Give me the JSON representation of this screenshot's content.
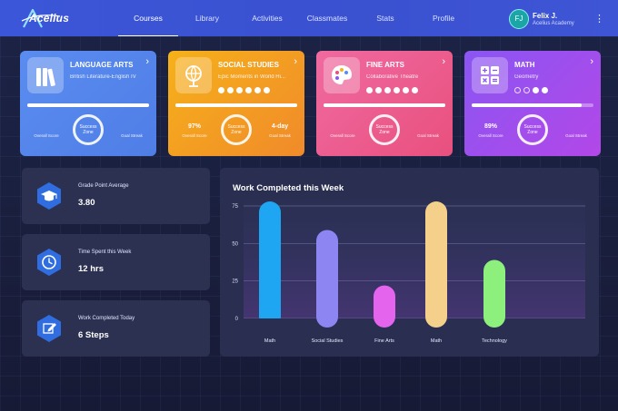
{
  "app": {
    "logo_text": "Acelius"
  },
  "nav": {
    "items": [
      {
        "label": "Courses",
        "active": true
      },
      {
        "label": "Library",
        "active": false
      },
      {
        "label": "Activities",
        "active": false
      },
      {
        "label": "Classmates",
        "active": false
      },
      {
        "label": "Stats",
        "active": false
      },
      {
        "label": "Profile",
        "active": false
      }
    ]
  },
  "user": {
    "initials": "FJ",
    "name": "Felix J.",
    "school": "Acelius Academy"
  },
  "courses": [
    {
      "title": "LANGUAGE ARTS",
      "subtitle": "British Literature-English IV",
      "icon": "books-icon",
      "progress": 1.0,
      "score": "",
      "score_label": "Overall Score",
      "ring_label": "Success Zone",
      "streak": "",
      "streak_label": "Goal Streak",
      "color_from": "#5a8cf0",
      "color_to": "#4f7ee6"
    },
    {
      "title": "SOCIAL STUDIES",
      "subtitle": "Epic Moments in World Hi...",
      "icon": "globe-icon",
      "progress": 1.0,
      "score": "97%",
      "score_label": "Overall Score",
      "ring_label": "Success Zone",
      "streak": "4-day",
      "streak_label": "Goal Streak",
      "color_from": "#f6b11a",
      "color_to": "#f08a2a"
    },
    {
      "title": "FINE ARTS",
      "subtitle": "Collaborative Theatre",
      "icon": "palette-icon",
      "progress": 1.0,
      "score": "",
      "score_label": "Overall Score",
      "ring_label": "Success Zone",
      "streak": "",
      "streak_label": "Goal Streak",
      "color_from": "#f06aa0",
      "color_to": "#e8507e"
    },
    {
      "title": "MATH",
      "subtitle": "Geometry",
      "icon": "calculator-icon",
      "progress": 0.9,
      "score": "89%",
      "score_label": "Overall Score",
      "ring_label": "Success Zone",
      "streak": "",
      "streak_label": "Goal Streak",
      "color_from": "#8a56f2",
      "color_to": "#b347e8"
    }
  ],
  "stats": [
    {
      "label": "Grade Point Average",
      "value": "3.80",
      "icon": "graduation-cap-icon"
    },
    {
      "label": "Time Spent this Week",
      "value": "12 hrs",
      "icon": "clock-icon"
    },
    {
      "label": "Work Completed Today",
      "value": "6 Steps",
      "icon": "pencil-icon"
    }
  ],
  "chart_data": {
    "type": "bar",
    "title": "Work Completed this Week",
    "categories": [
      "Math",
      "Social Studies",
      "Fine Arts",
      "Math",
      "Technology"
    ],
    "values": [
      78,
      59,
      22,
      78,
      39
    ],
    "colors": [
      "#1ea6f2",
      "#8d86f2",
      "#e464ee",
      "#f5d08a",
      "#8ef07c"
    ],
    "yticks": [
      0,
      25,
      50,
      75
    ],
    "ylim": [
      0,
      80
    ],
    "grid": true,
    "xlabel": "",
    "ylabel": ""
  }
}
